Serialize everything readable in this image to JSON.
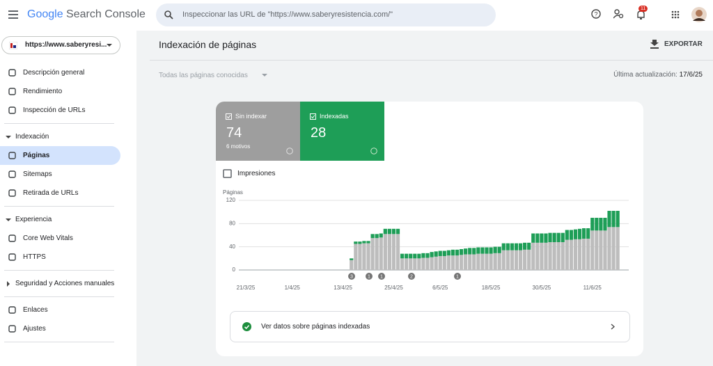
{
  "app": {
    "brand": "Google",
    "product": "Search Console",
    "search_placeholder": "Inspeccionar las URL de \"https://www.saberyresistencia.com/\"",
    "notifications": 11
  },
  "sidebar": {
    "property": "https://www.saberyresi...",
    "groups": [
      {
        "items": [
          "Descripción general",
          "Rendimiento",
          "Inspección de URLs"
        ]
      },
      {
        "title": "Indexación",
        "items": [
          "Páginas",
          "Sitemaps",
          "Retirada de URLs"
        ]
      },
      {
        "title": "Experiencia",
        "items": [
          "Core Web Vitals",
          "HTTPS"
        ]
      },
      {
        "title": "Seguridad y Acciones manuales"
      },
      {
        "items": [
          "Enlaces",
          "Ajustes"
        ]
      }
    ]
  },
  "page": {
    "title": "Indexación de páginas",
    "export": "EXPORTAR",
    "filter": "Todas las páginas conocidas",
    "updated_label": "Última actualización:",
    "updated_date": "17/6/25",
    "impressions": "Impresiones",
    "link": "Ver datos sobre páginas indexadas",
    "tiles": [
      {
        "total": 74,
        "detail": "6 motivos"
      },
      {
        "total": 28
      }
    ]
  },
  "chart_data": {
    "type": "bar",
    "stacked": true,
    "y_label": "Páginas",
    "ylim": [
      0,
      120
    ],
    "yticks": [
      0,
      40,
      80,
      120
    ],
    "grid": true,
    "annotations": [
      "3",
      "1",
      "1",
      "2",
      "1"
    ],
    "categories": [
      "21/3/25",
      null,
      null,
      null,
      null,
      null,
      null,
      null,
      null,
      null,
      null,
      "1/4/25",
      null,
      null,
      null,
      null,
      null,
      null,
      null,
      null,
      null,
      null,
      null,
      "13/4/25",
      null,
      null,
      null,
      null,
      null,
      null,
      null,
      null,
      null,
      null,
      null,
      "25/4/25",
      null,
      null,
      null,
      null,
      null,
      null,
      null,
      null,
      null,
      null,
      "6/5/25",
      null,
      null,
      null,
      null,
      null,
      null,
      null,
      null,
      null,
      null,
      null,
      "18/5/25",
      null,
      null,
      null,
      null,
      null,
      null,
      null,
      null,
      null,
      null,
      null,
      "30/5/25",
      null,
      null,
      null,
      null,
      null,
      null,
      null,
      null,
      null,
      null,
      null,
      "11/6/25",
      null,
      null,
      null,
      null,
      null,
      null
    ],
    "series": [
      {
        "name": "Sin indexar",
        "color": "#bdbdbd",
        "values": [
          null,
          null,
          null,
          null,
          null,
          null,
          null,
          null,
          null,
          null,
          null,
          null,
          null,
          null,
          null,
          null,
          null,
          null,
          null,
          null,
          null,
          null,
          null,
          null,
          null,
          17,
          45,
          45,
          46,
          46,
          55,
          55,
          56,
          62,
          62,
          62,
          62,
          20,
          20,
          20,
          20,
          20,
          21,
          21,
          22,
          23,
          24,
          24,
          25,
          25,
          25,
          26,
          27,
          27,
          27,
          28,
          28,
          28,
          28,
          29,
          29,
          34,
          34,
          34,
          34,
          34,
          35,
          35,
          47,
          47,
          47,
          47,
          48,
          48,
          48,
          48,
          52,
          52,
          53,
          53,
          54,
          54,
          68,
          68,
          68,
          68,
          74,
          74,
          74
        ]
      },
      {
        "name": "Indexadas",
        "color": "#1e9e57",
        "values": [
          null,
          null,
          null,
          null,
          null,
          null,
          null,
          null,
          null,
          null,
          null,
          null,
          null,
          null,
          null,
          null,
          null,
          null,
          null,
          null,
          null,
          null,
          null,
          null,
          null,
          3,
          4,
          4,
          4,
          4,
          7,
          7,
          7,
          9,
          9,
          9,
          9,
          8,
          8,
          8,
          8,
          8,
          8,
          8,
          9,
          9,
          9,
          9,
          9,
          10,
          10,
          10,
          10,
          11,
          11,
          11,
          11,
          11,
          11,
          11,
          11,
          12,
          12,
          12,
          12,
          12,
          12,
          12,
          16,
          16,
          16,
          16,
          16,
          16,
          16,
          16,
          17,
          17,
          17,
          18,
          18,
          18,
          22,
          22,
          22,
          22,
          28,
          28,
          28
        ]
      }
    ]
  }
}
